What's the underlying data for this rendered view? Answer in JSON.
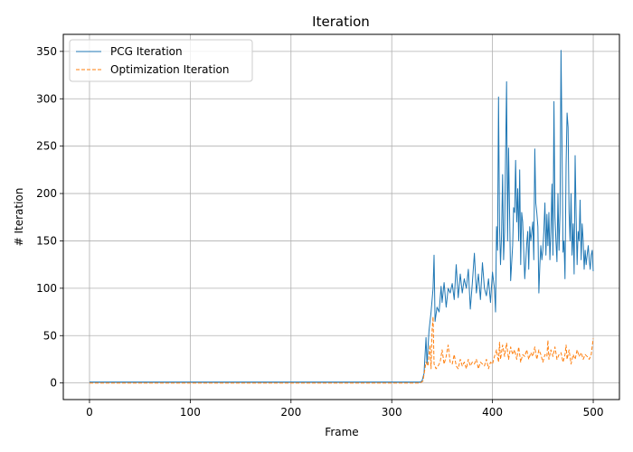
{
  "chart_data": {
    "type": "line",
    "title": "Iteration",
    "xlabel": "Frame",
    "ylabel": "# Iteration",
    "xlim": [
      -26,
      526
    ],
    "ylim": [
      -17.5,
      368
    ],
    "xticks": [
      0,
      100,
      200,
      300,
      400,
      500
    ],
    "yticks": [
      0,
      50,
      100,
      150,
      200,
      250,
      300,
      350
    ],
    "grid": true,
    "legend_position": "upper-left",
    "series": [
      {
        "name": "PCG Iteration",
        "color": "#1f77b4",
        "style": "solid",
        "points": [
          [
            0,
            1
          ],
          [
            100,
            1
          ],
          [
            200,
            1
          ],
          [
            300,
            1
          ],
          [
            328,
            1
          ],
          [
            330,
            2
          ],
          [
            332,
            10
          ],
          [
            334,
            48
          ],
          [
            335,
            20
          ],
          [
            337,
            55
          ],
          [
            339,
            75
          ],
          [
            341,
            100
          ],
          [
            342,
            135
          ],
          [
            343,
            65
          ],
          [
            345,
            80
          ],
          [
            347,
            75
          ],
          [
            349,
            102
          ],
          [
            350,
            85
          ],
          [
            352,
            106
          ],
          [
            354,
            80
          ],
          [
            356,
            100
          ],
          [
            358,
            95
          ],
          [
            360,
            105
          ],
          [
            362,
            88
          ],
          [
            364,
            125
          ],
          [
            366,
            90
          ],
          [
            368,
            115
          ],
          [
            370,
            95
          ],
          [
            372,
            110
          ],
          [
            374,
            100
          ],
          [
            376,
            120
          ],
          [
            378,
            78
          ],
          [
            380,
            105
          ],
          [
            382,
            137
          ],
          [
            384,
            95
          ],
          [
            386,
            115
          ],
          [
            388,
            88
          ],
          [
            390,
            127
          ],
          [
            392,
            100
          ],
          [
            394,
            92
          ],
          [
            396,
            110
          ],
          [
            398,
            85
          ],
          [
            400,
            117
          ],
          [
            402,
            100
          ],
          [
            403,
            75
          ],
          [
            404,
            165
          ],
          [
            405,
            140
          ],
          [
            406,
            302
          ],
          [
            407,
            165
          ],
          [
            408,
            125
          ],
          [
            409,
            155
          ],
          [
            410,
            220
          ],
          [
            411,
            130
          ],
          [
            412,
            160
          ],
          [
            414,
            318
          ],
          [
            415,
            150
          ],
          [
            416,
            248
          ],
          [
            417,
            175
          ],
          [
            418,
            108
          ],
          [
            420,
            145
          ],
          [
            421,
            185
          ],
          [
            422,
            180
          ],
          [
            423,
            235
          ],
          [
            424,
            170
          ],
          [
            425,
            205
          ],
          [
            426,
            150
          ],
          [
            427,
            225
          ],
          [
            428,
            125
          ],
          [
            429,
            180
          ],
          [
            430,
            170
          ],
          [
            432,
            110
          ],
          [
            434,
            147
          ],
          [
            435,
            160
          ],
          [
            436,
            120
          ],
          [
            437,
            165
          ],
          [
            438,
            150
          ],
          [
            440,
            170
          ],
          [
            441,
            130
          ],
          [
            442,
            247
          ],
          [
            443,
            190
          ],
          [
            444,
            180
          ],
          [
            445,
            165
          ],
          [
            446,
            95
          ],
          [
            447,
            125
          ],
          [
            448,
            145
          ],
          [
            449,
            130
          ],
          [
            450,
            140
          ],
          [
            451,
            160
          ],
          [
            452,
            190
          ],
          [
            453,
            135
          ],
          [
            454,
            178
          ],
          [
            455,
            145
          ],
          [
            456,
            180
          ],
          [
            457,
            130
          ],
          [
            458,
            160
          ],
          [
            459,
            210
          ],
          [
            460,
            135
          ],
          [
            461,
            297
          ],
          [
            462,
            175
          ],
          [
            463,
            150
          ],
          [
            464,
            128
          ],
          [
            465,
            200
          ],
          [
            466,
            140
          ],
          [
            467,
            180
          ],
          [
            468,
            351
          ],
          [
            469,
            250
          ],
          [
            470,
            138
          ],
          [
            471,
            150
          ],
          [
            472,
            110
          ],
          [
            473,
            230
          ],
          [
            474,
            285
          ],
          [
            475,
            270
          ],
          [
            476,
            180
          ],
          [
            477,
            150
          ],
          [
            478,
            200
          ],
          [
            479,
            135
          ],
          [
            480,
            168
          ],
          [
            481,
            115
          ],
          [
            482,
            240
          ],
          [
            483,
            175
          ],
          [
            484,
            125
          ],
          [
            485,
            160
          ],
          [
            486,
            150
          ],
          [
            487,
            193
          ],
          [
            488,
            130
          ],
          [
            489,
            168
          ],
          [
            490,
            150
          ],
          [
            491,
            120
          ],
          [
            492,
            140
          ],
          [
            493,
            125
          ],
          [
            494,
            135
          ],
          [
            495,
            145
          ],
          [
            496,
            130
          ],
          [
            497,
            120
          ],
          [
            498,
            135
          ],
          [
            499,
            140
          ],
          [
            500,
            118
          ]
        ]
      },
      {
        "name": "Optimization Iteration",
        "color": "#ff7f0e",
        "style": "dashed",
        "points": [
          [
            0,
            0
          ],
          [
            100,
            0
          ],
          [
            200,
            0
          ],
          [
            300,
            0
          ],
          [
            328,
            0
          ],
          [
            331,
            2
          ],
          [
            334,
            22
          ],
          [
            336,
            18
          ],
          [
            338,
            40
          ],
          [
            339,
            15
          ],
          [
            340,
            55
          ],
          [
            341,
            70
          ],
          [
            342,
            20
          ],
          [
            344,
            15
          ],
          [
            346,
            18
          ],
          [
            348,
            22
          ],
          [
            350,
            35
          ],
          [
            352,
            20
          ],
          [
            354,
            28
          ],
          [
            356,
            40
          ],
          [
            358,
            22
          ],
          [
            360,
            20
          ],
          [
            362,
            30
          ],
          [
            364,
            18
          ],
          [
            366,
            15
          ],
          [
            368,
            25
          ],
          [
            370,
            18
          ],
          [
            372,
            22
          ],
          [
            374,
            15
          ],
          [
            376,
            25
          ],
          [
            378,
            18
          ],
          [
            380,
            22
          ],
          [
            382,
            20
          ],
          [
            384,
            25
          ],
          [
            386,
            15
          ],
          [
            388,
            22
          ],
          [
            390,
            20
          ],
          [
            392,
            18
          ],
          [
            394,
            25
          ],
          [
            396,
            15
          ],
          [
            398,
            22
          ],
          [
            400,
            20
          ],
          [
            402,
            28
          ],
          [
            404,
            35
          ],
          [
            406,
            22
          ],
          [
            407,
            43
          ],
          [
            408,
            25
          ],
          [
            410,
            40
          ],
          [
            412,
            28
          ],
          [
            414,
            42
          ],
          [
            416,
            25
          ],
          [
            418,
            38
          ],
          [
            420,
            30
          ],
          [
            422,
            35
          ],
          [
            424,
            25
          ],
          [
            426,
            38
          ],
          [
            428,
            22
          ],
          [
            430,
            30
          ],
          [
            432,
            28
          ],
          [
            434,
            35
          ],
          [
            436,
            25
          ],
          [
            438,
            32
          ],
          [
            440,
            28
          ],
          [
            442,
            38
          ],
          [
            444,
            25
          ],
          [
            446,
            35
          ],
          [
            448,
            30
          ],
          [
            450,
            22
          ],
          [
            452,
            30
          ],
          [
            454,
            28
          ],
          [
            455,
            45
          ],
          [
            456,
            25
          ],
          [
            458,
            35
          ],
          [
            460,
            28
          ],
          [
            462,
            38
          ],
          [
            464,
            25
          ],
          [
            466,
            30
          ],
          [
            468,
            32
          ],
          [
            470,
            22
          ],
          [
            472,
            30
          ],
          [
            473,
            40
          ],
          [
            474,
            25
          ],
          [
            476,
            35
          ],
          [
            478,
            20
          ],
          [
            480,
            30
          ],
          [
            482,
            25
          ],
          [
            484,
            35
          ],
          [
            486,
            28
          ],
          [
            488,
            32
          ],
          [
            490,
            25
          ],
          [
            492,
            30
          ],
          [
            494,
            28
          ],
          [
            496,
            25
          ],
          [
            498,
            30
          ],
          [
            500,
            47
          ]
        ]
      }
    ]
  }
}
